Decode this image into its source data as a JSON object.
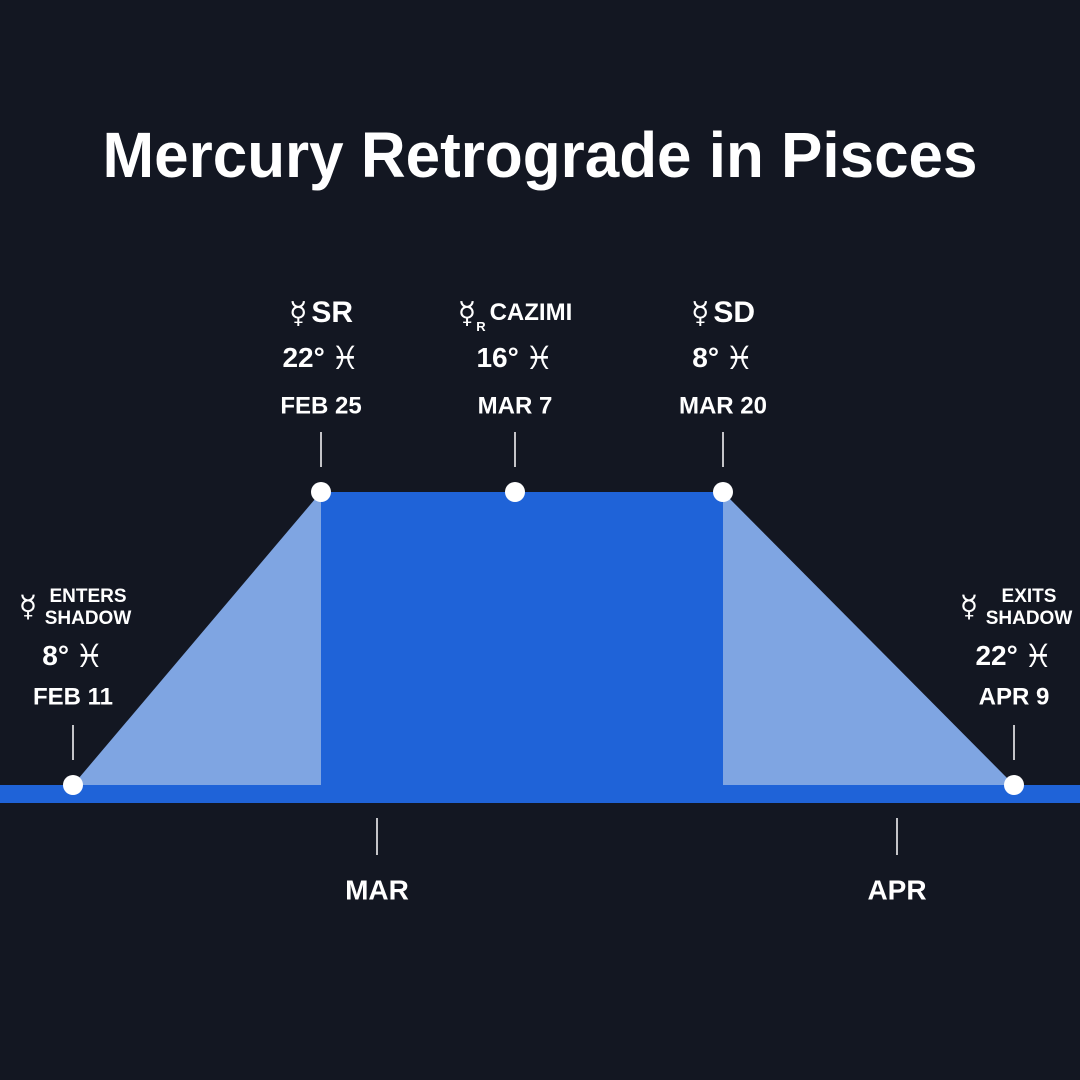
{
  "title": "Mercury Retrograde in Pisces",
  "events": [
    {
      "planet": "☿",
      "label_lines": [
        "ENTERS",
        "SHADOW"
      ],
      "degree": "8°",
      "sign": "♓",
      "date": "FEB 11"
    },
    {
      "planet": "☿",
      "label_lines": [
        "SR"
      ],
      "degree": "22°",
      "sign": "♓",
      "date": "FEB 25"
    },
    {
      "planet": "☿",
      "retro": "R",
      "label_lines": [
        "CAZIMI"
      ],
      "degree": "16°",
      "sign": "♓",
      "date": "MAR 7"
    },
    {
      "planet": "☿",
      "label_lines": [
        "SD"
      ],
      "degree": "8°",
      "sign": "♓",
      "date": "MAR 20"
    },
    {
      "planet": "☿",
      "label_lines": [
        "EXITS",
        "SHADOW"
      ],
      "degree": "22°",
      "sign": "♓",
      "date": "APR 9"
    }
  ],
  "months": [
    "MAR",
    "APR"
  ]
}
